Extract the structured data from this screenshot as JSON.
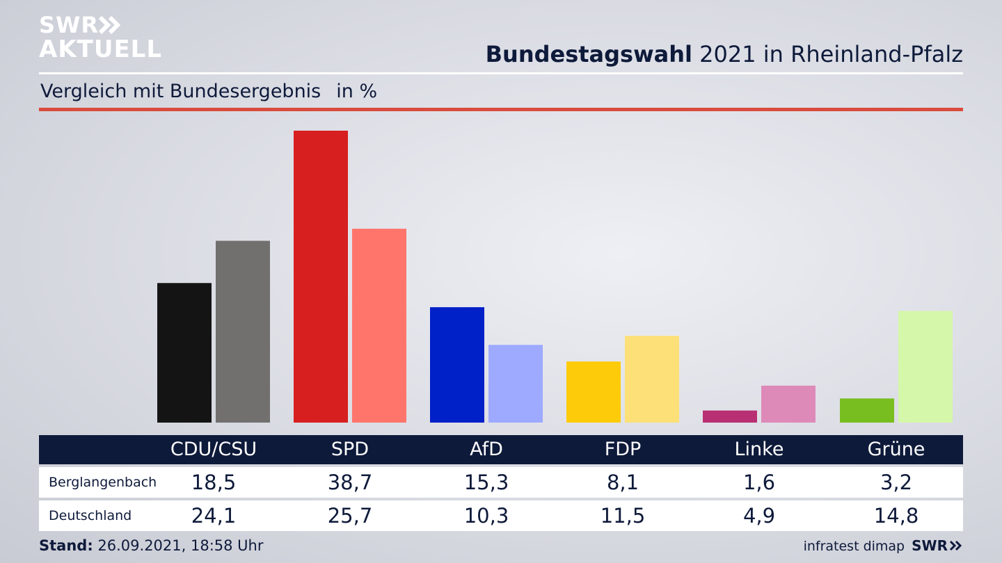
{
  "brand": {
    "logo_line1": "SWR",
    "logo_line2": "AKTUELL",
    "footer_source": "infratest dimap",
    "footer_logo": "SWR"
  },
  "header": {
    "title_bold": "Bundestagswahl",
    "title_rest": " 2021 in Rheinland-Pfalz",
    "subtitle": "Vergleich mit Bundesergebnis",
    "unit": "in %"
  },
  "footer": {
    "stand_label": "Stand:",
    "stand_value": " 26.09.2021, 18:58 Uhr"
  },
  "colors": {
    "navy": "#0e1a3a",
    "accent_red_rule": "#d94b3d"
  },
  "chart_data": {
    "type": "bar",
    "title": "Bundestagswahl 2021 in Rheinland-Pfalz",
    "subtitle": "Vergleich mit Bundesergebnis",
    "ylabel": "in %",
    "ylim": [
      0,
      40
    ],
    "grid": false,
    "categories": [
      "CDU/CSU",
      "SPD",
      "AfD",
      "FDP",
      "Linke",
      "Grüne"
    ],
    "series": [
      {
        "name": "Berglangenbach",
        "values": [
          18.5,
          38.7,
          15.3,
          8.1,
          1.6,
          3.2
        ],
        "labels": [
          "18,5",
          "38,7",
          "15,3",
          "8,1",
          "1,6",
          "3,2"
        ],
        "colors": [
          "#141414",
          "#d71f1f",
          "#0020c8",
          "#fdcb0a",
          "#b92f73",
          "#78be20"
        ]
      },
      {
        "name": "Deutschland",
        "values": [
          24.1,
          25.7,
          10.3,
          11.5,
          4.9,
          14.8
        ],
        "labels": [
          "24,1",
          "25,7",
          "10,3",
          "11,5",
          "4,9",
          "14,8"
        ],
        "colors": [
          "#72706e",
          "#ff756c",
          "#9eaaff",
          "#fde077",
          "#de8ab9",
          "#d5f7aa"
        ]
      }
    ]
  }
}
